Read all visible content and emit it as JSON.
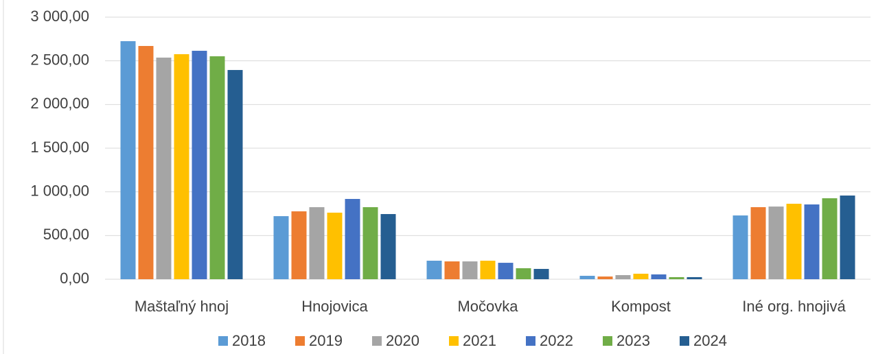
{
  "chart_data": {
    "type": "bar",
    "categories": [
      "Maštaľný hnoj",
      "Hnojovica",
      "Močovka",
      "Kompost",
      "Iné org. hnojivá"
    ],
    "series": [
      {
        "name": "2018",
        "color": "#5b9bd5",
        "values": [
          2725,
          722,
          212,
          39,
          730
        ]
      },
      {
        "name": "2019",
        "color": "#ed7d31",
        "values": [
          2670,
          777,
          204,
          31,
          825
        ]
      },
      {
        "name": "2020",
        "color": "#a5a5a5",
        "values": [
          2537,
          825,
          204,
          47,
          832
        ]
      },
      {
        "name": "2021",
        "color": "#ffc000",
        "values": [
          2576,
          762,
          212,
          63,
          864
        ]
      },
      {
        "name": "2022",
        "color": "#4472c4",
        "values": [
          2615,
          919,
          188,
          55,
          856
        ]
      },
      {
        "name": "2023",
        "color": "#70ad47",
        "values": [
          2552,
          825,
          126,
          24,
          927
        ]
      },
      {
        "name": "2024",
        "color": "#255e91",
        "values": [
          2395,
          746,
          118,
          24,
          958
        ]
      }
    ],
    "ylim": [
      0,
      3000
    ],
    "yticks": [
      {
        "value": 0,
        "label": "0,00"
      },
      {
        "value": 500,
        "label": "500,00"
      },
      {
        "value": 1000,
        "label": "1 000,00"
      },
      {
        "value": 1500,
        "label": "1 500,00"
      },
      {
        "value": 2000,
        "label": "2 000,00"
      },
      {
        "value": 2500,
        "label": "2 500,00"
      },
      {
        "value": 3000,
        "label": "3 000,00"
      }
    ],
    "grid": true,
    "legend": "bottom"
  }
}
